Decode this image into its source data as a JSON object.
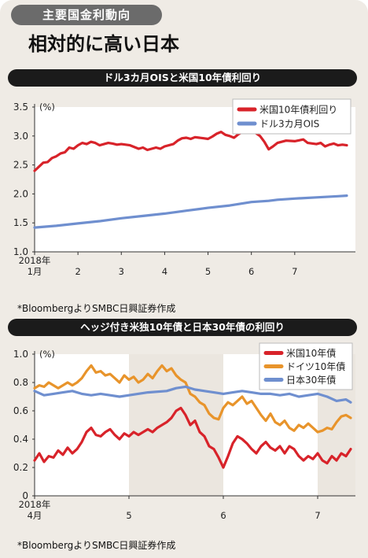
{
  "header": {
    "tag": "主要国金利動向",
    "title": "相対的に高い日本"
  },
  "chart_data": [
    {
      "type": "line",
      "title": "ドル3カ月OISと米国10年債利回り",
      "unit": "(%)",
      "ylim": [
        1.0,
        3.5
      ],
      "yticks": [
        "3.5",
        "3.0",
        "2.5",
        "2.0",
        "1.5",
        "1.0"
      ],
      "x_range": [
        0,
        7.4
      ],
      "xticks": [
        {
          "x": 0,
          "label": "1月",
          "year": "2018年"
        },
        {
          "x": 1,
          "label": "2"
        },
        {
          "x": 2,
          "label": "3"
        },
        {
          "x": 3,
          "label": "4"
        },
        {
          "x": 4,
          "label": "5"
        },
        {
          "x": 5,
          "label": "6"
        },
        {
          "x": 6,
          "label": "7"
        }
      ],
      "legend_position": "top-right",
      "grid": false,
      "series": [
        {
          "name": "米国10年債利回り",
          "color": "#d8232a",
          "points": [
            [
              0,
              2.4
            ],
            [
              0.1,
              2.47
            ],
            [
              0.2,
              2.54
            ],
            [
              0.3,
              2.55
            ],
            [
              0.4,
              2.62
            ],
            [
              0.5,
              2.65
            ],
            [
              0.6,
              2.7
            ],
            [
              0.7,
              2.72
            ],
            [
              0.8,
              2.8
            ],
            [
              0.9,
              2.78
            ],
            [
              1.0,
              2.84
            ],
            [
              1.1,
              2.88
            ],
            [
              1.2,
              2.86
            ],
            [
              1.3,
              2.9
            ],
            [
              1.4,
              2.88
            ],
            [
              1.5,
              2.84
            ],
            [
              1.6,
              2.86
            ],
            [
              1.7,
              2.88
            ],
            [
              1.8,
              2.87
            ],
            [
              1.9,
              2.85
            ],
            [
              2.0,
              2.86
            ],
            [
              2.2,
              2.84
            ],
            [
              2.4,
              2.78
            ],
            [
              2.5,
              2.8
            ],
            [
              2.6,
              2.76
            ],
            [
              2.8,
              2.8
            ],
            [
              2.9,
              2.78
            ],
            [
              3.0,
              2.82
            ],
            [
              3.2,
              2.86
            ],
            [
              3.3,
              2.92
            ],
            [
              3.4,
              2.96
            ],
            [
              3.5,
              2.97
            ],
            [
              3.6,
              2.95
            ],
            [
              3.7,
              2.98
            ],
            [
              3.8,
              2.97
            ],
            [
              3.9,
              2.96
            ],
            [
              4.0,
              2.95
            ],
            [
              4.1,
              2.99
            ],
            [
              4.2,
              3.04
            ],
            [
              4.3,
              3.07
            ],
            [
              4.4,
              3.02
            ],
            [
              4.5,
              3.0
            ],
            [
              4.6,
              2.97
            ],
            [
              4.7,
              3.03
            ],
            [
              4.8,
              3.07
            ],
            [
              4.9,
              3.1
            ],
            [
              5.0,
              3.08
            ],
            [
              5.1,
              3.05
            ],
            [
              5.2,
              3.0
            ],
            [
              5.3,
              2.9
            ],
            [
              5.4,
              2.77
            ],
            [
              5.5,
              2.82
            ],
            [
              5.6,
              2.88
            ],
            [
              5.8,
              2.92
            ],
            [
              6.0,
              2.91
            ],
            [
              6.2,
              2.94
            ],
            [
              6.3,
              2.88
            ],
            [
              6.5,
              2.86
            ],
            [
              6.6,
              2.88
            ],
            [
              6.7,
              2.82
            ],
            [
              6.8,
              2.85
            ],
            [
              6.9,
              2.87
            ],
            [
              7.0,
              2.84
            ],
            [
              7.1,
              2.85
            ],
            [
              7.2,
              2.84
            ]
          ]
        },
        {
          "name": "ドル3カ月OIS",
          "color": "#6f8fcf",
          "points": [
            [
              0,
              1.42
            ],
            [
              0.5,
              1.45
            ],
            [
              1,
              1.49
            ],
            [
              1.5,
              1.53
            ],
            [
              2,
              1.58
            ],
            [
              2.5,
              1.62
            ],
            [
              3,
              1.66
            ],
            [
              3.5,
              1.71
            ],
            [
              4,
              1.76
            ],
            [
              4.5,
              1.8
            ],
            [
              5,
              1.86
            ],
            [
              5.4,
              1.88
            ],
            [
              5.6,
              1.9
            ],
            [
              6,
              1.92
            ],
            [
              6.5,
              1.94
            ],
            [
              7,
              1.96
            ],
            [
              7.2,
              1.97
            ]
          ]
        }
      ]
    },
    {
      "type": "line",
      "title": "ヘッジ付き米独10年債と日本30年債の利回り",
      "unit": "(%)",
      "ylim": [
        0,
        1.0
      ],
      "yticks": [
        "1.0",
        "0.8",
        "0.6",
        "0.4",
        "0.2",
        "0"
      ],
      "x_range": [
        0,
        3.4
      ],
      "xticks": [
        {
          "x": 0,
          "label": "4月",
          "year": "2018年"
        },
        {
          "x": 1,
          "label": "5"
        },
        {
          "x": 2,
          "label": "6"
        },
        {
          "x": 3,
          "label": "7"
        }
      ],
      "shaded_months": [
        [
          1,
          2
        ],
        [
          3,
          3.4
        ]
      ],
      "legend_position": "top-right",
      "grid": false,
      "series": [
        {
          "name": "米国10年債",
          "color": "#d8232a",
          "points": [
            [
              0,
              0.25
            ],
            [
              0.05,
              0.3
            ],
            [
              0.1,
              0.24
            ],
            [
              0.15,
              0.28
            ],
            [
              0.2,
              0.27
            ],
            [
              0.25,
              0.32
            ],
            [
              0.3,
              0.29
            ],
            [
              0.35,
              0.34
            ],
            [
              0.4,
              0.3
            ],
            [
              0.45,
              0.33
            ],
            [
              0.5,
              0.38
            ],
            [
              0.55,
              0.45
            ],
            [
              0.6,
              0.48
            ],
            [
              0.65,
              0.43
            ],
            [
              0.7,
              0.42
            ],
            [
              0.75,
              0.45
            ],
            [
              0.8,
              0.47
            ],
            [
              0.85,
              0.43
            ],
            [
              0.9,
              0.4
            ],
            [
              0.95,
              0.44
            ],
            [
              1.0,
              0.42
            ],
            [
              1.05,
              0.45
            ],
            [
              1.1,
              0.43
            ],
            [
              1.15,
              0.45
            ],
            [
              1.2,
              0.47
            ],
            [
              1.25,
              0.45
            ],
            [
              1.3,
              0.48
            ],
            [
              1.35,
              0.5
            ],
            [
              1.4,
              0.52
            ],
            [
              1.45,
              0.55
            ],
            [
              1.5,
              0.6
            ],
            [
              1.55,
              0.62
            ],
            [
              1.6,
              0.57
            ],
            [
              1.65,
              0.5
            ],
            [
              1.7,
              0.53
            ],
            [
              1.75,
              0.45
            ],
            [
              1.8,
              0.42
            ],
            [
              1.85,
              0.35
            ],
            [
              1.9,
              0.33
            ],
            [
              1.95,
              0.27
            ],
            [
              2.0,
              0.2
            ],
            [
              2.05,
              0.28
            ],
            [
              2.1,
              0.37
            ],
            [
              2.15,
              0.42
            ],
            [
              2.2,
              0.4
            ],
            [
              2.25,
              0.37
            ],
            [
              2.3,
              0.33
            ],
            [
              2.35,
              0.3
            ],
            [
              2.4,
              0.35
            ],
            [
              2.45,
              0.38
            ],
            [
              2.5,
              0.34
            ],
            [
              2.55,
              0.32
            ],
            [
              2.6,
              0.35
            ],
            [
              2.65,
              0.3
            ],
            [
              2.7,
              0.35
            ],
            [
              2.75,
              0.33
            ],
            [
              2.8,
              0.28
            ],
            [
              2.85,
              0.25
            ],
            [
              2.9,
              0.28
            ],
            [
              2.95,
              0.26
            ],
            [
              3.0,
              0.3
            ],
            [
              3.05,
              0.25
            ],
            [
              3.1,
              0.23
            ],
            [
              3.15,
              0.28
            ],
            [
              3.2,
              0.25
            ],
            [
              3.25,
              0.3
            ],
            [
              3.3,
              0.28
            ],
            [
              3.35,
              0.33
            ]
          ]
        },
        {
          "name": "ドイツ10年債",
          "color": "#e8942b",
          "points": [
            [
              0,
              0.76
            ],
            [
              0.05,
              0.78
            ],
            [
              0.1,
              0.77
            ],
            [
              0.15,
              0.8
            ],
            [
              0.2,
              0.78
            ],
            [
              0.25,
              0.76
            ],
            [
              0.3,
              0.78
            ],
            [
              0.35,
              0.8
            ],
            [
              0.4,
              0.78
            ],
            [
              0.45,
              0.8
            ],
            [
              0.5,
              0.83
            ],
            [
              0.55,
              0.88
            ],
            [
              0.6,
              0.92
            ],
            [
              0.65,
              0.87
            ],
            [
              0.7,
              0.88
            ],
            [
              0.75,
              0.85
            ],
            [
              0.8,
              0.86
            ],
            [
              0.85,
              0.83
            ],
            [
              0.9,
              0.8
            ],
            [
              0.95,
              0.85
            ],
            [
              1.0,
              0.82
            ],
            [
              1.05,
              0.84
            ],
            [
              1.1,
              0.8
            ],
            [
              1.15,
              0.82
            ],
            [
              1.2,
              0.86
            ],
            [
              1.25,
              0.83
            ],
            [
              1.3,
              0.88
            ],
            [
              1.35,
              0.92
            ],
            [
              1.4,
              0.88
            ],
            [
              1.45,
              0.9
            ],
            [
              1.5,
              0.85
            ],
            [
              1.55,
              0.82
            ],
            [
              1.6,
              0.8
            ],
            [
              1.65,
              0.72
            ],
            [
              1.7,
              0.7
            ],
            [
              1.75,
              0.66
            ],
            [
              1.8,
              0.64
            ],
            [
              1.85,
              0.58
            ],
            [
              1.9,
              0.55
            ],
            [
              1.95,
              0.54
            ],
            [
              2.0,
              0.62
            ],
            [
              2.05,
              0.66
            ],
            [
              2.1,
              0.64
            ],
            [
              2.15,
              0.67
            ],
            [
              2.2,
              0.7
            ],
            [
              2.25,
              0.65
            ],
            [
              2.3,
              0.67
            ],
            [
              2.35,
              0.62
            ],
            [
              2.4,
              0.57
            ],
            [
              2.45,
              0.53
            ],
            [
              2.5,
              0.58
            ],
            [
              2.55,
              0.52
            ],
            [
              2.6,
              0.5
            ],
            [
              2.65,
              0.53
            ],
            [
              2.7,
              0.48
            ],
            [
              2.75,
              0.46
            ],
            [
              2.8,
              0.5
            ],
            [
              2.85,
              0.48
            ],
            [
              2.9,
              0.51
            ],
            [
              2.95,
              0.48
            ],
            [
              3.0,
              0.45
            ],
            [
              3.05,
              0.46
            ],
            [
              3.1,
              0.48
            ],
            [
              3.15,
              0.47
            ],
            [
              3.2,
              0.52
            ],
            [
              3.25,
              0.56
            ],
            [
              3.3,
              0.57
            ],
            [
              3.35,
              0.55
            ]
          ]
        },
        {
          "name": "日本30年債",
          "color": "#6f8fcf",
          "points": [
            [
              0,
              0.74
            ],
            [
              0.1,
              0.71
            ],
            [
              0.2,
              0.72
            ],
            [
              0.3,
              0.73
            ],
            [
              0.4,
              0.74
            ],
            [
              0.5,
              0.72
            ],
            [
              0.6,
              0.71
            ],
            [
              0.7,
              0.72
            ],
            [
              0.8,
              0.71
            ],
            [
              0.9,
              0.7
            ],
            [
              1.0,
              0.71
            ],
            [
              1.2,
              0.73
            ],
            [
              1.4,
              0.74
            ],
            [
              1.5,
              0.76
            ],
            [
              1.6,
              0.77
            ],
            [
              1.7,
              0.75
            ],
            [
              1.8,
              0.74
            ],
            [
              1.9,
              0.73
            ],
            [
              2.0,
              0.72
            ],
            [
              2.1,
              0.73
            ],
            [
              2.2,
              0.74
            ],
            [
              2.3,
              0.73
            ],
            [
              2.4,
              0.72
            ],
            [
              2.5,
              0.72
            ],
            [
              2.6,
              0.71
            ],
            [
              2.7,
              0.72
            ],
            [
              2.8,
              0.7
            ],
            [
              2.9,
              0.71
            ],
            [
              3.0,
              0.72
            ],
            [
              3.1,
              0.7
            ],
            [
              3.2,
              0.67
            ],
            [
              3.3,
              0.68
            ],
            [
              3.35,
              0.66
            ]
          ]
        }
      ]
    }
  ],
  "notes": [
    "*BloombergよりSMBC日興証券作成",
    "*BloombergよりSMBC日興証券作成"
  ]
}
